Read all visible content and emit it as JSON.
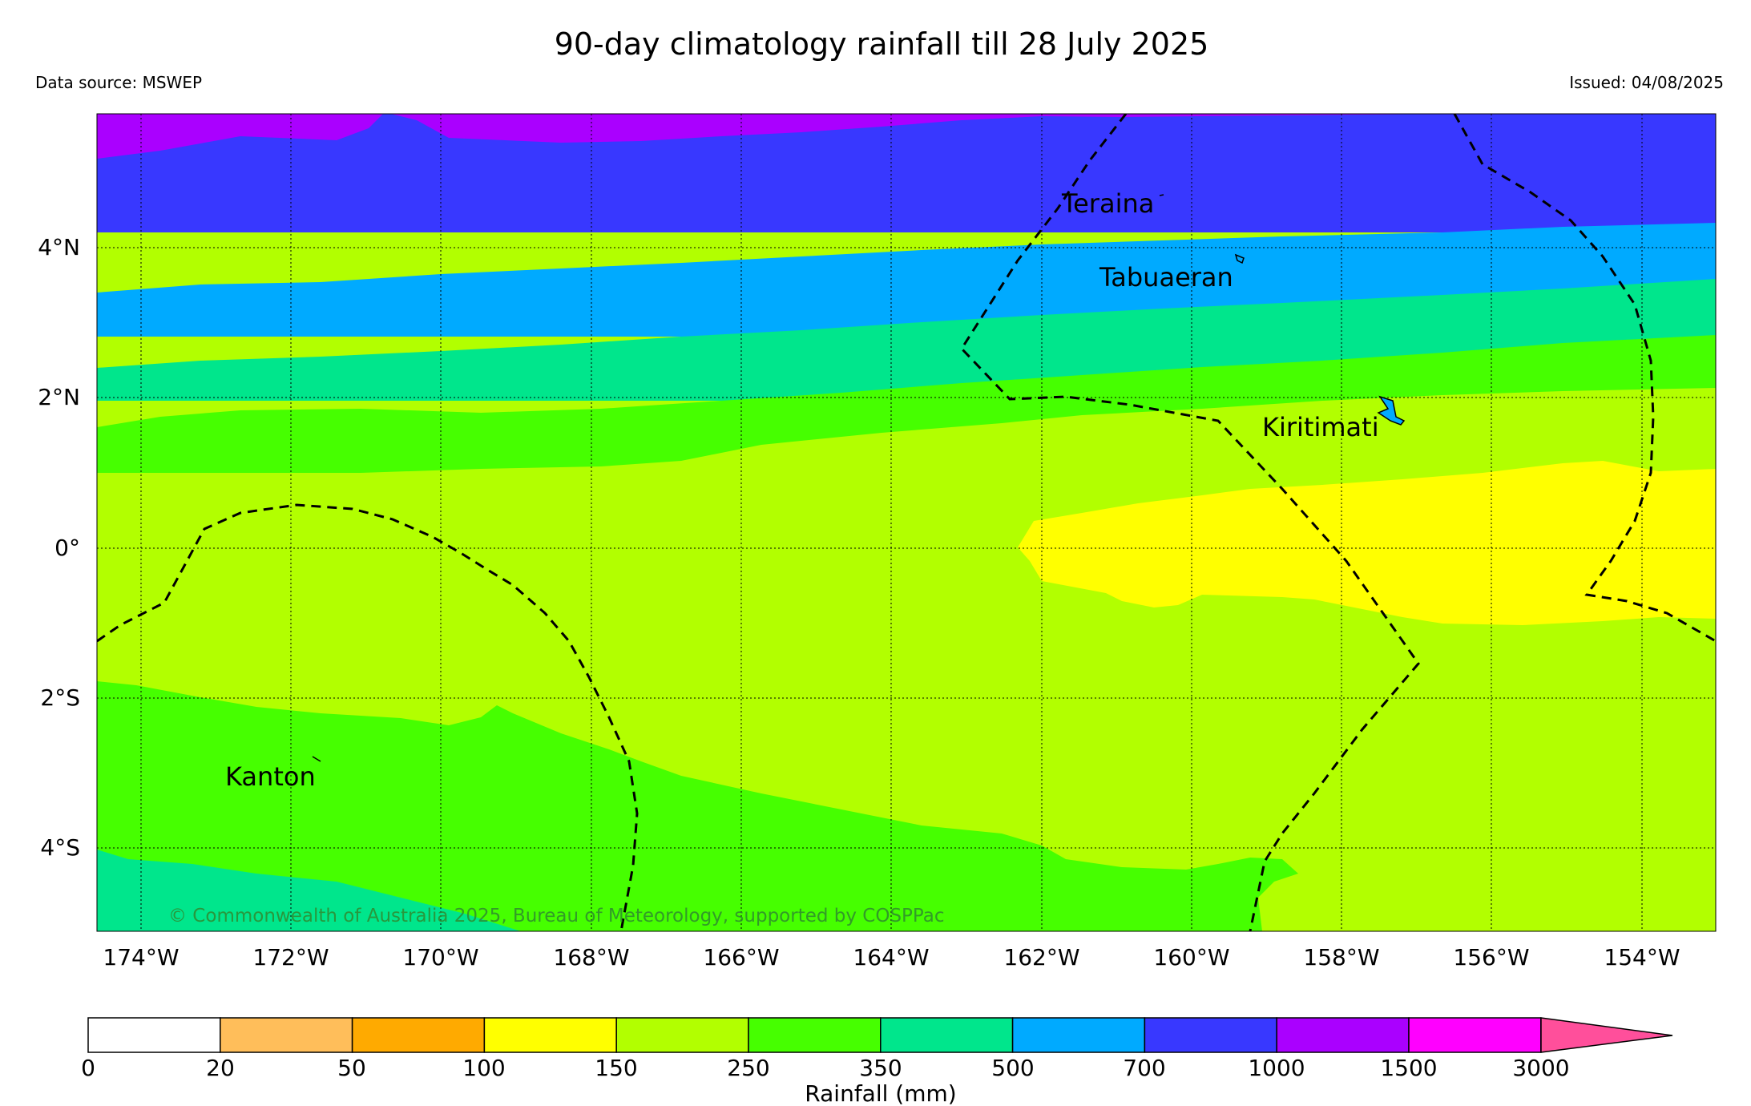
{
  "header": {
    "title": "90-day climatology rainfall till 28 July 2025",
    "source": "Data source: MSWEP",
    "issued": "Issued: 04/08/2025"
  },
  "map": {
    "lat_labels": [
      "4°N",
      "2°N",
      "0°",
      "2°S",
      "4°S"
    ],
    "lon_labels": [
      "174°W",
      "172°W",
      "170°W",
      "168°W",
      "166°W",
      "164°W",
      "162°W",
      "160°W",
      "158°W",
      "156°W",
      "154°W"
    ],
    "places": {
      "teraina": "Teraina",
      "tabuaeran": "Tabuaeran",
      "kiritimati": "Kiritimati",
      "kanton": "Kanton"
    },
    "copyright": "© Commonwealth of Australia 2025, Bureau of Meteorology, supported by COSPPac"
  },
  "legend": {
    "title": "Rainfall (mm)",
    "ticks": [
      "0",
      "20",
      "50",
      "100",
      "150",
      "250",
      "350",
      "500",
      "700",
      "1000",
      "1500",
      "3000"
    ],
    "colors": [
      "#ffffff",
      "#ffbe5a",
      "#ffaa00",
      "#ffff00",
      "#b2ff00",
      "#46ff00",
      "#00e68c",
      "#00aaff",
      "#3838ff",
      "#aa00ff",
      "#ff00ff",
      "#ff4f9b"
    ]
  }
}
